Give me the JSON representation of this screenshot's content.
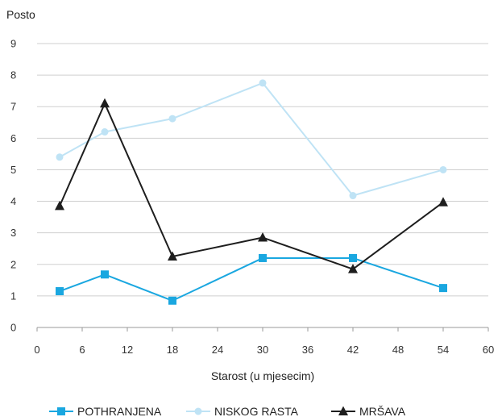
{
  "chart_data": {
    "type": "line",
    "ylabel": "Posto",
    "xlabel": "Starost (u mjesecim)",
    "xlim": [
      0,
      60
    ],
    "ylim": [
      0,
      9
    ],
    "x_ticks": [
      0,
      6,
      12,
      18,
      24,
      30,
      36,
      42,
      48,
      54,
      60
    ],
    "y_ticks": [
      0,
      1,
      2,
      3,
      4,
      5,
      6,
      7,
      8,
      9
    ],
    "grid": true,
    "legend_position": "bottom",
    "x": [
      3,
      9,
      18,
      30,
      42,
      54
    ],
    "series": [
      {
        "name": "POTHRANJENA",
        "values": [
          1.15,
          1.68,
          0.85,
          2.2,
          2.2,
          1.25
        ],
        "color": "#1aa7e0",
        "marker": "square"
      },
      {
        "name": "NISKOG RASTA",
        "values": [
          5.4,
          6.2,
          6.62,
          7.75,
          4.18,
          5.0
        ],
        "color": "#bfe3f5",
        "marker": "circle"
      },
      {
        "name": "MRŠAVA",
        "values": [
          3.85,
          7.1,
          2.25,
          2.85,
          1.85,
          3.97
        ],
        "color": "#1e1e1e",
        "marker": "triangle"
      }
    ]
  }
}
